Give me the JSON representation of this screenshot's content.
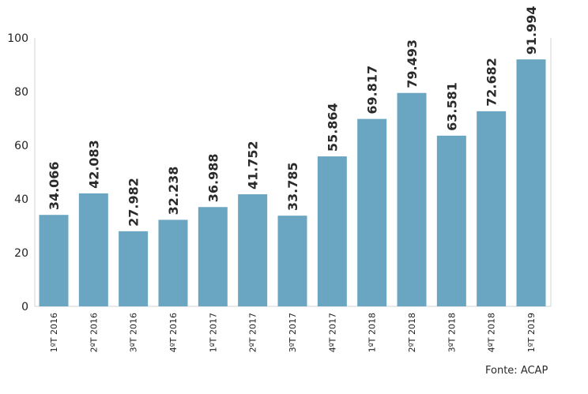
{
  "chart_data": {
    "type": "bar",
    "categories": [
      "1ºT 2016",
      "2ºT 2016",
      "3ºT 2016",
      "4ºT 2016",
      "1ºT 2017",
      "2ºT 2017",
      "3ºT 2017",
      "4ºT 2017",
      "1ºT 2018",
      "2ºT 2018",
      "3ºT 2018",
      "4ºT 2018",
      "1ºT 2019"
    ],
    "values": [
      34.066,
      42.083,
      27.982,
      32.238,
      36.988,
      41.752,
      33.785,
      55.864,
      69.817,
      79.493,
      63.581,
      72.682,
      91.994
    ],
    "data_labels": [
      "34.066",
      "42.083",
      "27.982",
      "32.238",
      "36.988",
      "41.752",
      "33.785",
      "55.864",
      "69.817",
      "79.493",
      "63.581",
      "72.682",
      "91.994"
    ],
    "yticks": [
      0,
      20,
      40,
      60,
      80,
      100
    ],
    "ylim": [
      0,
      100
    ],
    "bar_color": "#6aa6c2",
    "grid": false,
    "legend": "none"
  },
  "source": "Fonte: ACAP"
}
